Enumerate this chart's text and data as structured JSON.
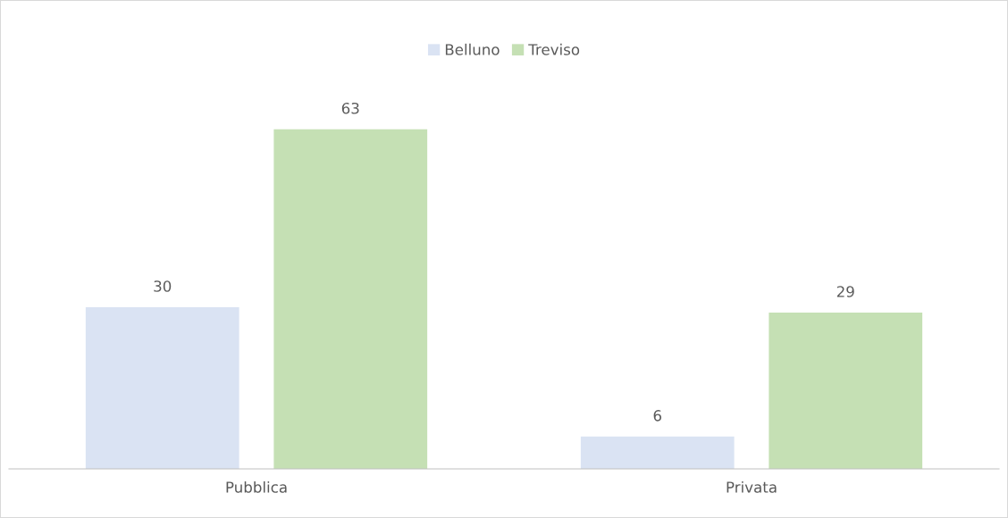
{
  "chart_data": {
    "type": "bar",
    "categories": [
      "Pubblica",
      "Privata"
    ],
    "series": [
      {
        "name": "Belluno",
        "color": "#dae3f3",
        "values": [
          30,
          6
        ]
      },
      {
        "name": "Treviso",
        "color": "#c5e0b4",
        "values": [
          63,
          29
        ]
      }
    ],
    "data_labels": true,
    "legend": "top",
    "grid": false
  }
}
